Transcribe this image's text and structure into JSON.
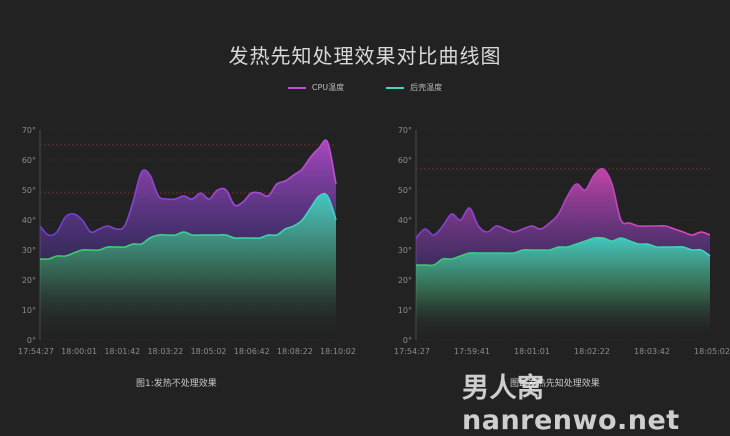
{
  "title": "发热先知处理效果对比曲线图",
  "legend": [
    {
      "name": "CPU温度",
      "color": "#c04fd6"
    },
    {
      "name": "后壳温度",
      "color": "#3fd6c8"
    }
  ],
  "watermark": "男人窝 nanrenwo.net",
  "chart_data": [
    {
      "type": "area",
      "caption": "图1:发热不处理效果",
      "ylim": [
        0,
        70
      ],
      "yticks": [
        "0°",
        "10°",
        "20°",
        "30°",
        "40°",
        "50°",
        "60°",
        "70°"
      ],
      "xticks": [
        "17:54:27",
        "18:00:01",
        "18:01:42",
        "18:03:22",
        "18:05:02",
        "18:06:42",
        "18:08:22",
        "18:10:02"
      ],
      "threshold_lines": [
        65,
        49
      ],
      "series": [
        {
          "name": "CPU温度",
          "color_top": "#c04fd6",
          "color_bottom": "#6a3fd0",
          "values": [
            38,
            35,
            36,
            41,
            42,
            40,
            36,
            37,
            38,
            37,
            38,
            46,
            56,
            55,
            48,
            47,
            47,
            48,
            47,
            49,
            47,
            50,
            50,
            45,
            46,
            49,
            49,
            48,
            52,
            53,
            55,
            57,
            61,
            64,
            66,
            52
          ]
        },
        {
          "name": "后壳温度",
          "color_top": "#3fd6c8",
          "color_bottom": "#3ccc63",
          "values": [
            27,
            27,
            28,
            28,
            29,
            30,
            30,
            30,
            31,
            31,
            31,
            32,
            32,
            34,
            35,
            35,
            35,
            36,
            35,
            35,
            35,
            35,
            35,
            34,
            34,
            34,
            34,
            35,
            35,
            37,
            38,
            40,
            44,
            48,
            48,
            40
          ]
        }
      ]
    },
    {
      "type": "area",
      "caption": "图2:发热先知处理效果",
      "ylim": [
        0,
        70
      ],
      "yticks": [
        "0°",
        "10°",
        "20°",
        "30°",
        "40°",
        "50°",
        "60°",
        "70°"
      ],
      "xticks": [
        "17:54:27",
        "17:59:41",
        "18:01:01",
        "18:02:22",
        "18:03:42",
        "18:05:02"
      ],
      "threshold_lines": [
        57
      ],
      "series": [
        {
          "name": "CPU温度",
          "color_top": "#e04ab8",
          "color_bottom": "#7a3fd0",
          "values": [
            34,
            37,
            35,
            38,
            42,
            40,
            44,
            38,
            36,
            38,
            37,
            36,
            37,
            38,
            37,
            39,
            42,
            48,
            52,
            50,
            55,
            57,
            52,
            40,
            39,
            38,
            38,
            38,
            38,
            37,
            36,
            35,
            36,
            35
          ]
        },
        {
          "name": "后壳温度",
          "color_top": "#3fd6c8",
          "color_bottom": "#3ccc63",
          "values": [
            25,
            25,
            25,
            27,
            27,
            28,
            29,
            29,
            29,
            29,
            29,
            29,
            30,
            30,
            30,
            30,
            31,
            31,
            32,
            33,
            34,
            34,
            33,
            34,
            33,
            32,
            32,
            31,
            31,
            31,
            31,
            30,
            30,
            28
          ]
        }
      ]
    }
  ]
}
